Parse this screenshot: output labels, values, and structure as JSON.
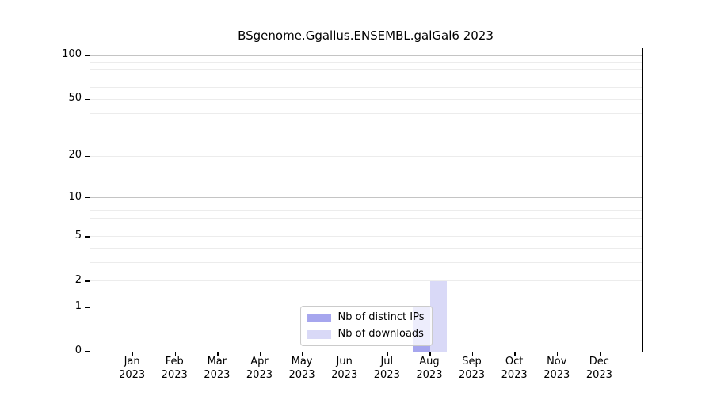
{
  "title": "BSgenome.Ggallus.ENSEMBL.galGal6 2023",
  "chart_data": {
    "type": "bar",
    "title": "BSgenome.Ggallus.ENSEMBL.galGal6 2023",
    "y_scale": "log1p",
    "categories": [
      "Jan",
      "Feb",
      "Mar",
      "Apr",
      "May",
      "Jun",
      "Jul",
      "Aug",
      "Sep",
      "Oct",
      "Nov",
      "Dec"
    ],
    "category_year": "2023",
    "series": [
      {
        "name": "Nb of distinct IPs",
        "color": "#a6a6ee",
        "values": [
          0,
          0,
          0,
          0,
          0,
          0,
          0,
          1,
          0,
          0,
          0,
          0
        ]
      },
      {
        "name": "Nb of downloads",
        "color": "#d9d9f7",
        "values": [
          0,
          0,
          0,
          0,
          0,
          0,
          0,
          2,
          0,
          0,
          0,
          0
        ]
      }
    ],
    "yticks": [
      0,
      1,
      2,
      5,
      10,
      20,
      50,
      100
    ],
    "gridlines": {
      "major": [
        1,
        10,
        100
      ],
      "minor": [
        2,
        3,
        4,
        5,
        6,
        7,
        8,
        9,
        20,
        30,
        40,
        50,
        60,
        70,
        80,
        90
      ]
    },
    "ylim": [
      0,
      112
    ],
    "xlabel": "",
    "ylabel": "",
    "grid": true,
    "legend_position": "lower center",
    "colors": {
      "axis": "#000000",
      "major_grid": "#c4c4c4",
      "minor_grid": "#ececec",
      "background": "#ffffff"
    }
  }
}
